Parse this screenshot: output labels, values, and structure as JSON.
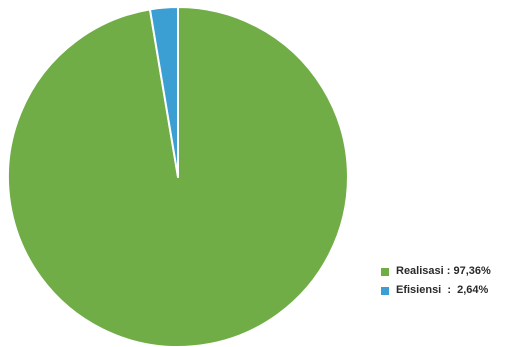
{
  "chart_data": {
    "type": "pie",
    "slices": [
      {
        "label": "Realisasi",
        "value": 97.36,
        "color": "#70ad47"
      },
      {
        "label": "Efisiensi",
        "value": 2.64,
        "color": "#3b9fd4"
      }
    ],
    "start": "12 o'clock",
    "direction": "clockwise",
    "slice_border": "#ffffff",
    "legend_position": "bottom-right"
  },
  "legend": {
    "items": [
      {
        "text": "Realisasi : 97,36%",
        "color": "#70ad47"
      },
      {
        "text": "Efisiensi  :  2,64%",
        "color": "#3b9fd4"
      }
    ]
  }
}
